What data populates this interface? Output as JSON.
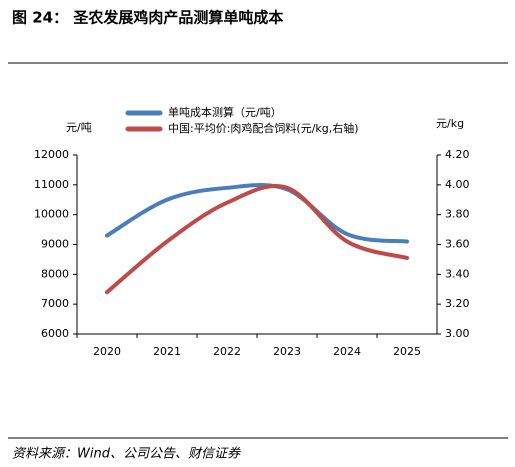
{
  "title": "图 24：  圣农发展鸡肉产品测算单吨成本",
  "source": "资料来源：Wind、公司公告、财信证券",
  "chart_data": {
    "type": "line",
    "ylabel": "元/吨",
    "y2label": "元/kg",
    "categories": [
      "2020",
      "2021",
      "2022",
      "2023",
      "2024",
      "2025"
    ],
    "series": [
      {
        "name": "单吨成本测算（元/吨）",
        "color": "#4a7ebb",
        "values": [
          9300,
          10500,
          10900,
          10850,
          9350,
          9100
        ]
      },
      {
        "name": "中国:平均价:肉鸡配合饲料(元/kg,右轴)",
        "color": "#be4b48",
        "axis": "y2",
        "values": [
          3.28,
          3.62,
          3.88,
          3.98,
          3.62,
          3.51
        ]
      }
    ],
    "ylim": [
      6000,
      12000
    ],
    "yticks": [
      6000,
      7000,
      8000,
      9000,
      10000,
      11000,
      12000
    ],
    "y2lim": [
      3.0,
      4.2
    ],
    "y2ticks": [
      {
        "value": 3.0,
        "label": "3.00"
      },
      {
        "value": 3.2,
        "label": "3.20"
      },
      {
        "value": 3.4,
        "label": "3.40"
      },
      {
        "value": 3.6,
        "label": "3.60"
      },
      {
        "value": 3.8,
        "label": "3.80"
      },
      {
        "value": 4.0,
        "label": "4.00"
      },
      {
        "value": 4.2,
        "label": "4.20"
      }
    ]
  }
}
